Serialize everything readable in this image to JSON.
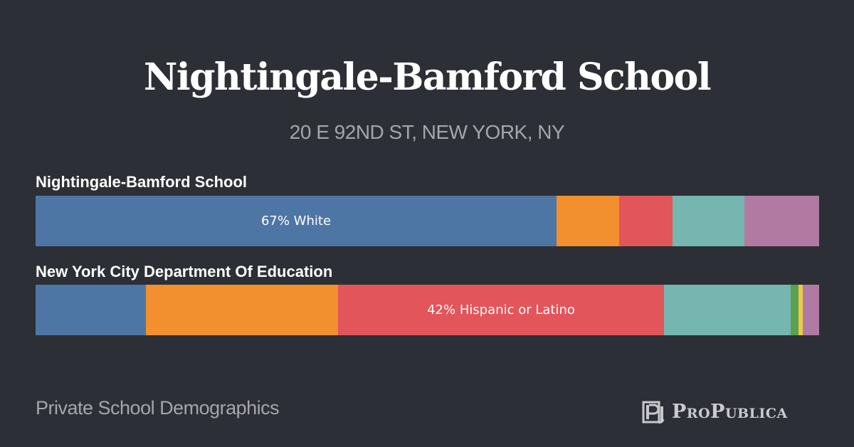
{
  "header": {
    "title": "Nightingale-Bamford School",
    "address": "20 E 92ND ST, NEW YORK, NY"
  },
  "footer": {
    "caption": "Private School Demographics",
    "brand": "ProPublica"
  },
  "colors": {
    "white": "#4e76a4",
    "asian": "#f28f2e",
    "hispanic": "#e2555b",
    "black": "#76b6b1",
    "native_american": "#58a14e",
    "pacific_islander": "#edc849",
    "multiracial": "#b07aa2"
  },
  "chart_data": {
    "type": "bar",
    "orientation": "horizontal-stacked",
    "xlim": [
      0,
      100
    ],
    "series_keys": [
      "white",
      "asian",
      "hispanic",
      "black",
      "native_american",
      "pacific_islander",
      "multiracial"
    ],
    "rows": [
      {
        "name": "Nightingale-Bamford School",
        "label": "67% White",
        "label_segment": 0,
        "values": [
          66.5,
          8.0,
          6.8,
          9.2,
          0,
          0,
          9.5
        ]
      },
      {
        "name": "New York City Department Of Education",
        "label": "42% Hispanic or Latino",
        "label_segment": 2,
        "values": [
          14.1,
          24.5,
          41.6,
          16.2,
          1.0,
          0.5,
          2.1
        ]
      }
    ]
  }
}
